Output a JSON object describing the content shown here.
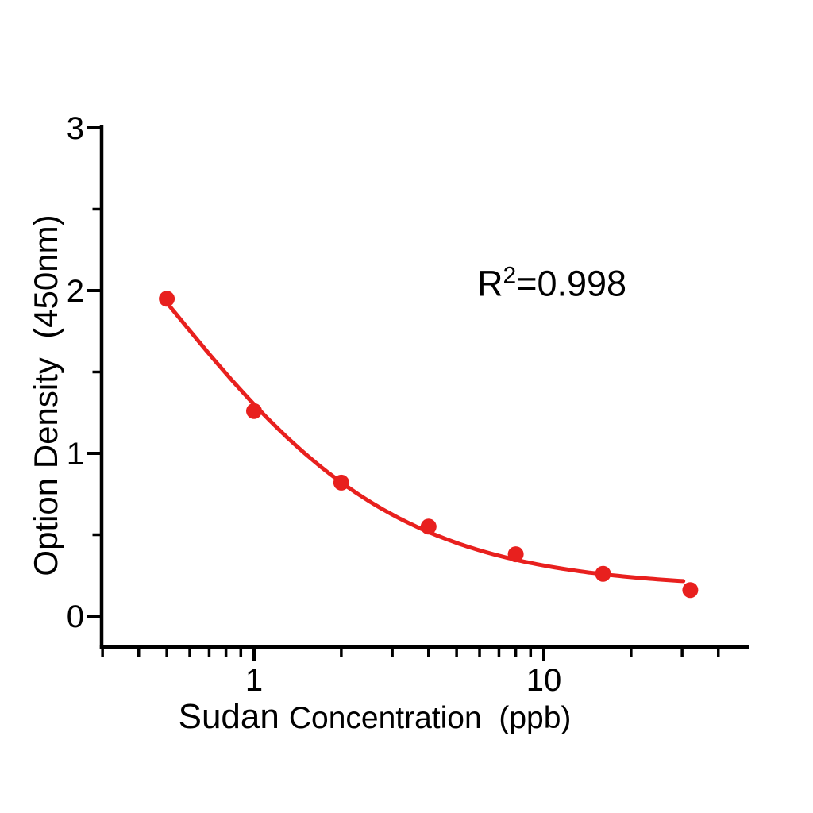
{
  "page": {
    "background_color": "#ffffff",
    "text_color": "#000000"
  },
  "chart_data": {
    "type": "scatter",
    "title": "",
    "grid": false,
    "legend": false,
    "axis_color": "#000000",
    "x_axis": {
      "label_word": "Sudan",
      "label_rest": "Concentration  (ppb)",
      "scale": "log",
      "range": [
        0.3,
        51
      ],
      "major_ticks": [
        1,
        10
      ],
      "major_tick_labels": [
        "1",
        "10"
      ],
      "minor_ticks": [
        0.3,
        0.4,
        0.5,
        0.6,
        0.7,
        0.8,
        0.9,
        2,
        3,
        4,
        5,
        6,
        7,
        8,
        9,
        20,
        30,
        40
      ]
    },
    "y_axis": {
      "label": "Option Density  (450nm)",
      "scale": "linear",
      "range": [
        0,
        3
      ],
      "major_ticks": [
        0,
        1,
        2,
        3
      ],
      "major_tick_labels": [
        "0",
        "1",
        "2",
        "3"
      ],
      "minor_ticks": [
        0.5,
        1.5,
        2.5
      ]
    },
    "series": [
      {
        "name": "sudan-standard-curve",
        "color": "#e8201e",
        "marker": "circle",
        "points": [
          [
            0.5,
            1.95
          ],
          [
            1,
            1.26
          ],
          [
            2,
            0.82
          ],
          [
            4,
            0.55
          ],
          [
            8,
            0.38
          ],
          [
            16,
            0.26
          ],
          [
            32,
            0.16
          ]
        ]
      }
    ],
    "fit_curve": {
      "model": "4PL",
      "params": {
        "a": 3.8,
        "b": 1.05,
        "c": 0.47,
        "d": 0.17
      },
      "x_start": 0.5,
      "x_end": 30.3,
      "color": "#e8201e"
    },
    "annotation": {
      "symbol": "R",
      "exponent": "2",
      "value": "=0.998"
    }
  }
}
